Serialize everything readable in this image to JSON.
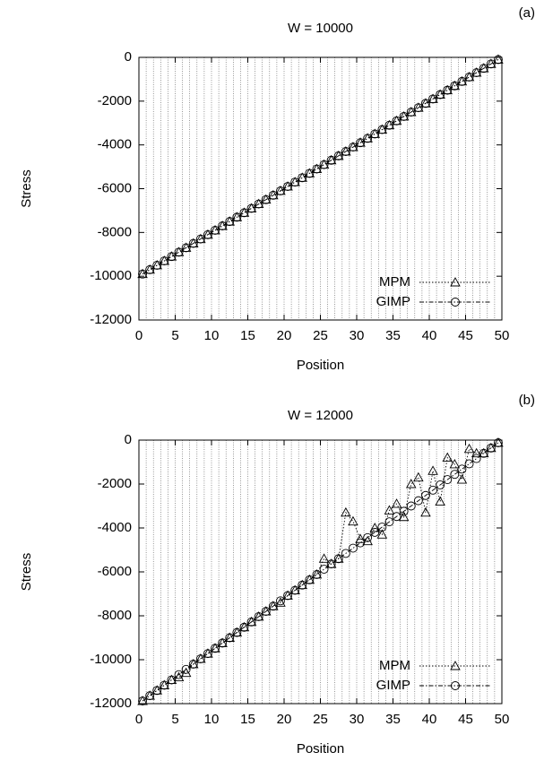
{
  "chart_data": [
    {
      "type": "line",
      "panel_label": "(a)",
      "title": "W = 10000",
      "x_label": "Position",
      "y_label": "Stress",
      "x": [
        0.5,
        1.5,
        2.5,
        3.5,
        4.5,
        5.5,
        6.5,
        7.5,
        8.5,
        9.5,
        10.5,
        11.5,
        12.5,
        13.5,
        14.5,
        15.5,
        16.5,
        17.5,
        18.5,
        19.5,
        20.5,
        21.5,
        22.5,
        23.5,
        24.5,
        25.5,
        26.5,
        27.5,
        28.5,
        29.5,
        30.5,
        31.5,
        32.5,
        33.5,
        34.5,
        35.5,
        36.5,
        37.5,
        38.5,
        39.5,
        40.5,
        41.5,
        42.5,
        43.5,
        44.5,
        45.5,
        46.5,
        47.5,
        48.5,
        49.5
      ],
      "series": [
        {
          "name": "MPM",
          "color": "#000000",
          "marker": "triangle",
          "dash": "dotted",
          "values": [
            -9900,
            -9700,
            -9500,
            -9300,
            -9100,
            -8900,
            -8700,
            -8500,
            -8300,
            -8100,
            -7900,
            -7700,
            -7500,
            -7300,
            -7100,
            -6900,
            -6700,
            -6500,
            -6300,
            -6100,
            -5900,
            -5700,
            -5500,
            -5300,
            -5100,
            -4900,
            -4700,
            -4500,
            -4300,
            -4100,
            -3900,
            -3700,
            -3500,
            -3300,
            -3100,
            -2900,
            -2700,
            -2500,
            -2300,
            -2100,
            -1900,
            -1700,
            -1500,
            -1300,
            -1100,
            -900,
            -700,
            -500,
            -300,
            -100
          ]
        },
        {
          "name": "GIMP",
          "color": "#000000",
          "marker": "circle",
          "dash": "dashdot",
          "values": [
            -9900,
            -9700,
            -9500,
            -9300,
            -9100,
            -8900,
            -8700,
            -8500,
            -8300,
            -8100,
            -7900,
            -7700,
            -7500,
            -7300,
            -7100,
            -6900,
            -6700,
            -6500,
            -6300,
            -6100,
            -5900,
            -5700,
            -5500,
            -5300,
            -5100,
            -4900,
            -4700,
            -4500,
            -4300,
            -4100,
            -3900,
            -3700,
            -3500,
            -3300,
            -3100,
            -2900,
            -2700,
            -2500,
            -2300,
            -2100,
            -1900,
            -1700,
            -1500,
            -1300,
            -1100,
            -900,
            -700,
            -500,
            -300,
            -100
          ]
        }
      ],
      "xlim": [
        0,
        50
      ],
      "xticks": [
        0,
        5,
        10,
        15,
        20,
        25,
        30,
        35,
        40,
        45,
        50
      ],
      "ylim": [
        -12000,
        0
      ],
      "yticks": [
        -12000,
        -10000,
        -8000,
        -6000,
        -4000,
        -2000,
        0
      ],
      "x_gridlines": [
        0,
        1,
        2,
        3,
        4,
        5,
        6,
        7,
        8,
        9,
        10,
        11,
        12,
        13,
        14,
        15,
        16,
        17,
        18,
        19,
        20,
        21,
        22,
        23,
        24,
        25,
        26,
        27,
        28,
        29,
        30,
        31,
        32,
        33,
        34,
        35,
        36,
        37,
        38,
        39,
        40,
        41,
        42,
        43,
        44,
        45,
        46,
        47,
        48,
        49,
        50
      ],
      "legend": "lower right"
    },
    {
      "type": "line",
      "panel_label": "(b)",
      "title": "W = 12000",
      "x_label": "Position",
      "y_label": "Stress",
      "x": [
        0.5,
        1.5,
        2.5,
        3.5,
        4.5,
        5.5,
        6.5,
        7.5,
        8.5,
        9.5,
        10.5,
        11.5,
        12.5,
        13.5,
        14.5,
        15.5,
        16.5,
        17.5,
        18.5,
        19.5,
        20.5,
        21.5,
        22.5,
        23.5,
        24.5,
        25.5,
        26.5,
        27.5,
        28.5,
        29.5,
        30.5,
        31.5,
        32.5,
        33.5,
        34.5,
        35.5,
        36.5,
        37.5,
        38.5,
        39.5,
        40.5,
        41.5,
        42.5,
        43.5,
        44.5,
        45.5,
        46.5,
        47.5,
        48.5,
        49.5
      ],
      "series": [
        {
          "name": "MPM",
          "color": "#000000",
          "marker": "triangle",
          "dash": "dotted",
          "values": [
            -11880,
            -11640,
            -11400,
            -11160,
            -10920,
            -10800,
            -10600,
            -10200,
            -9960,
            -9720,
            -9480,
            -9240,
            -9000,
            -8760,
            -8520,
            -8280,
            -8040,
            -7800,
            -7560,
            -7400,
            -7080,
            -6840,
            -6600,
            -6360,
            -6120,
            -5400,
            -5640,
            -5400,
            -3300,
            -3700,
            -4500,
            -4600,
            -4000,
            -4300,
            -3200,
            -2900,
            -3500,
            -2000,
            -1700,
            -3300,
            -1400,
            -2800,
            -800,
            -1100,
            -1800,
            -400,
            -600,
            -600,
            -360,
            -120
          ]
        },
        {
          "name": "GIMP",
          "color": "#000000",
          "marker": "circle",
          "dash": "dashdot",
          "values": [
            -11880,
            -11640,
            -11400,
            -11160,
            -10920,
            -10680,
            -10440,
            -10200,
            -9960,
            -9720,
            -9480,
            -9240,
            -9000,
            -8760,
            -8520,
            -8280,
            -8040,
            -7800,
            -7560,
            -7320,
            -7080,
            -6840,
            -6600,
            -6360,
            -6120,
            -5880,
            -5640,
            -5400,
            -5160,
            -4920,
            -4680,
            -4440,
            -4200,
            -3960,
            -3720,
            -3480,
            -3240,
            -3000,
            -2760,
            -2520,
            -2280,
            -2040,
            -1800,
            -1560,
            -1320,
            -1080,
            -840,
            -600,
            -360,
            -120
          ]
        }
      ],
      "xlim": [
        0,
        50
      ],
      "xticks": [
        0,
        5,
        10,
        15,
        20,
        25,
        30,
        35,
        40,
        45,
        50
      ],
      "ylim": [
        -12000,
        0
      ],
      "yticks": [
        -12000,
        -10000,
        -8000,
        -6000,
        -4000,
        -2000,
        0
      ],
      "x_gridlines": [
        0,
        1,
        2,
        3,
        4,
        5,
        6,
        7,
        8,
        9,
        10,
        11,
        12,
        13,
        14,
        15,
        16,
        17,
        18,
        19,
        20,
        21,
        22,
        23,
        24,
        25,
        26,
        27,
        28,
        29,
        30,
        31,
        32,
        33,
        34,
        35,
        36,
        37,
        38,
        39,
        40,
        41,
        42,
        43,
        44,
        45,
        46,
        47,
        48,
        49,
        50
      ],
      "legend": "lower right"
    }
  ]
}
